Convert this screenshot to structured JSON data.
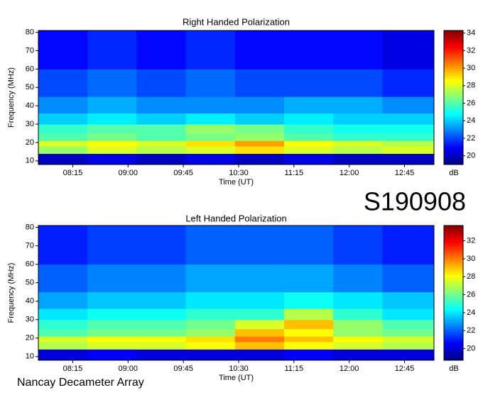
{
  "chart_data": [
    {
      "type": "heatmap",
      "title": "Right Handed Polarization",
      "xlabel": "Time (UT)",
      "ylabel": "Frequency (MHz)",
      "colorbar_label": "dB",
      "x_edges": [
        467,
        507,
        547,
        587,
        627,
        667,
        707,
        747,
        789
      ],
      "y_edges": [
        8,
        14,
        18,
        21,
        25,
        30,
        36,
        45,
        60,
        81
      ],
      "z": [
        [
          20,
          20.5,
          20,
          20.5,
          20,
          20.5,
          20,
          20
        ],
        [
          27,
          28,
          27.5,
          28,
          29,
          28,
          27.5,
          28
        ],
        [
          28,
          28.5,
          28,
          29,
          30,
          28.5,
          28,
          27.5
        ],
        [
          26,
          26.5,
          26,
          26.5,
          27,
          26,
          25.5,
          25.5
        ],
        [
          25.5,
          26,
          26,
          27,
          26.5,
          25.5,
          25,
          25
        ],
        [
          24,
          24.5,
          24,
          24.5,
          24,
          24.5,
          24,
          24
        ],
        [
          23,
          23.5,
          23,
          23,
          23,
          23.5,
          23.5,
          23
        ],
        [
          22,
          22.5,
          22,
          22.5,
          22,
          22,
          22,
          21.5
        ],
        [
          21,
          21.5,
          21,
          21.5,
          21,
          21,
          21,
          20.5
        ]
      ],
      "xlim": [
        467,
        789
      ],
      "ylim": [
        8,
        81
      ],
      "clim": [
        19,
        34.3
      ],
      "xticks": [
        {
          "value": 495,
          "label": "08:15"
        },
        {
          "value": 540,
          "label": "09:00"
        },
        {
          "value": 585,
          "label": "09:45"
        },
        {
          "value": 630,
          "label": "10:30"
        },
        {
          "value": 675,
          "label": "11:15"
        },
        {
          "value": 720,
          "label": "12:00"
        },
        {
          "value": 765,
          "label": "12:45"
        }
      ],
      "yticks": [
        10,
        20,
        30,
        40,
        50,
        60,
        70,
        80
      ],
      "cticks": [
        20,
        22,
        24,
        26,
        28,
        30,
        32,
        34
      ],
      "colormap": "jet"
    },
    {
      "type": "heatmap",
      "title": "Left Handed Polarization",
      "xlabel": "Time (UT)",
      "ylabel": "Frequency (MHz)",
      "colorbar_label": "dB",
      "x_edges": [
        467,
        507,
        547,
        587,
        627,
        667,
        707,
        747,
        789
      ],
      "y_edges": [
        8,
        14,
        18,
        21,
        25,
        30,
        36,
        45,
        60,
        81
      ],
      "z": [
        [
          20,
          20.5,
          20,
          20,
          20,
          20.5,
          20,
          20
        ],
        [
          27,
          27.5,
          27.5,
          28,
          29,
          28,
          27.5,
          27
        ],
        [
          27.5,
          28,
          28,
          28.5,
          30,
          29,
          28,
          27.5
        ],
        [
          25.5,
          26,
          26,
          26.5,
          29,
          28,
          26.5,
          26
        ],
        [
          25,
          25.5,
          25.5,
          26,
          27.5,
          29,
          26.5,
          25.5
        ],
        [
          24,
          24.5,
          24.5,
          25,
          25,
          27,
          25,
          24
        ],
        [
          23,
          23.5,
          23.5,
          24,
          24,
          24.5,
          24,
          23.5
        ],
        [
          22,
          22.5,
          22.5,
          23,
          23,
          23,
          22.5,
          22
        ],
        [
          21,
          21.5,
          21.5,
          22,
          22,
          22,
          21.5,
          21
        ]
      ],
      "xlim": [
        467,
        789
      ],
      "ylim": [
        8,
        81
      ],
      "clim": [
        18.7,
        33.7
      ],
      "xticks": [
        {
          "value": 495,
          "label": "08:15"
        },
        {
          "value": 540,
          "label": "09:00"
        },
        {
          "value": 585,
          "label": "09:45"
        },
        {
          "value": 630,
          "label": "10:30"
        },
        {
          "value": 675,
          "label": "11:15"
        },
        {
          "value": 720,
          "label": "12:00"
        },
        {
          "value": 765,
          "label": "12:45"
        }
      ],
      "yticks": [
        10,
        20,
        30,
        40,
        50,
        60,
        70,
        80
      ],
      "cticks": [
        20,
        22,
        24,
        26,
        28,
        30,
        32
      ],
      "colormap": "jet"
    }
  ],
  "annotations": {
    "event_id": "S190908",
    "observatory": "Nancay Decameter Array"
  }
}
